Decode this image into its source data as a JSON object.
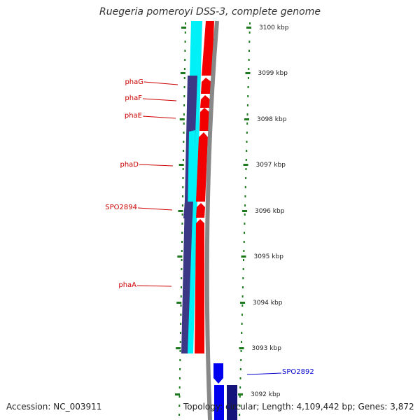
{
  "title": "Ruegeria pomeroyi DSS-3, complete genome",
  "accession": "Accession: NC_003911",
  "topology": "Topology: circular; Length: 4,109,442 bp; Genes: 3,872",
  "colors": {
    "cyan": "#00f0f8",
    "navy": "#3c3885",
    "red": "#f20000",
    "blue": "#0000ee",
    "darkblue": "#14147a",
    "gray": "#888888",
    "tick": "#1c7a1c",
    "label_red": "#cc0000",
    "label_blue": "#0000cc"
  },
  "scale_labels": [
    "3100 kbp",
    "3099 kbp",
    "3098 kbp",
    "3097 kbp",
    "3096 kbp",
    "3095 kbp",
    "3094 kbp",
    "3093 kbp",
    "3092 kbp"
  ],
  "gene_labels": [
    "phaG",
    "phaF",
    "phaE",
    "phaD",
    "SPO2894",
    "phaA",
    "SPO2892"
  ]
}
